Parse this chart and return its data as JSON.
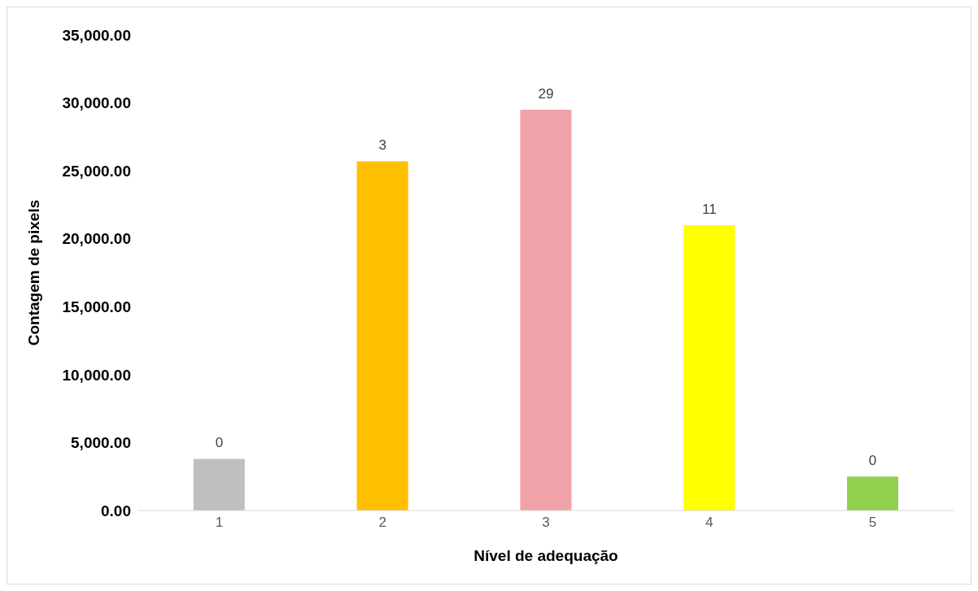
{
  "chart_data": {
    "type": "bar",
    "xlabel": "Nível de adequação",
    "ylabel": "Contagem de pixels",
    "categories": [
      "1",
      "2",
      "3",
      "4",
      "5"
    ],
    "values": [
      3800,
      25700,
      29500,
      21000,
      2500
    ],
    "colors": [
      "#bfbfbf",
      "#ffc000",
      "#f1a2a9",
      "#ffff00",
      "#92d050"
    ],
    "annotations": [
      {
        "text": "0",
        "x": "1",
        "y": 3800
      },
      {
        "text": "3",
        "x": "2",
        "y": 25700
      },
      {
        "text": "29",
        "x": "3",
        "y": 29500
      },
      {
        "text": "11",
        "x": "4",
        "y": 21000
      },
      {
        "text": "0",
        "x": "5",
        "y": 2500
      }
    ],
    "ylim": [
      0,
      35000
    ],
    "yticks": [
      {
        "value": 0,
        "label": "0.00"
      },
      {
        "value": 5000,
        "label": "5,000.00"
      },
      {
        "value": 10000,
        "label": "10,000.00"
      },
      {
        "value": 15000,
        "label": "15,000.00"
      },
      {
        "value": 20000,
        "label": "20,000.00"
      },
      {
        "value": 25000,
        "label": "25,000.00"
      },
      {
        "value": 30000,
        "label": "30,000.00"
      },
      {
        "value": 35000,
        "label": "35,000.00"
      }
    ],
    "grid": false,
    "legend": false
  }
}
